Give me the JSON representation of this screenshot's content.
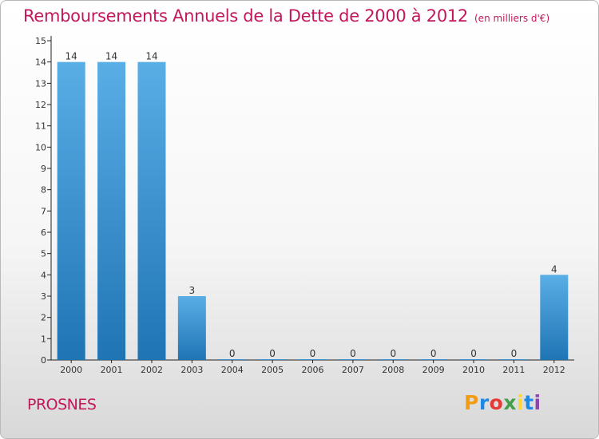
{
  "title": "Remboursements Annuels de la Dette de 2000 à 2012",
  "unit": "(en milliers d'€)",
  "commune": "PROSNES",
  "logo": {
    "text": "Proxiti",
    "colors": [
      "#f39c12",
      "#1e88e5",
      "#e53935",
      "#43a047",
      "#fdd835",
      "#1e88e5",
      "#8e44ad"
    ]
  },
  "chart_data": {
    "type": "bar",
    "categories": [
      "2000",
      "2001",
      "2002",
      "2003",
      "2004",
      "2005",
      "2006",
      "2007",
      "2008",
      "2009",
      "2010",
      "2011",
      "2012"
    ],
    "values": [
      14,
      14,
      14,
      3,
      0,
      0,
      0,
      0,
      0,
      0,
      0,
      0,
      4
    ],
    "ylim": [
      0,
      15
    ],
    "yticks": [
      0,
      1,
      2,
      3,
      4,
      5,
      6,
      7,
      8,
      9,
      10,
      11,
      12,
      13,
      14,
      15
    ],
    "bar_color_top": "#5aaee6",
    "bar_color_bottom": "#1f74b4",
    "grid": false,
    "xlabel": "",
    "ylabel": ""
  }
}
